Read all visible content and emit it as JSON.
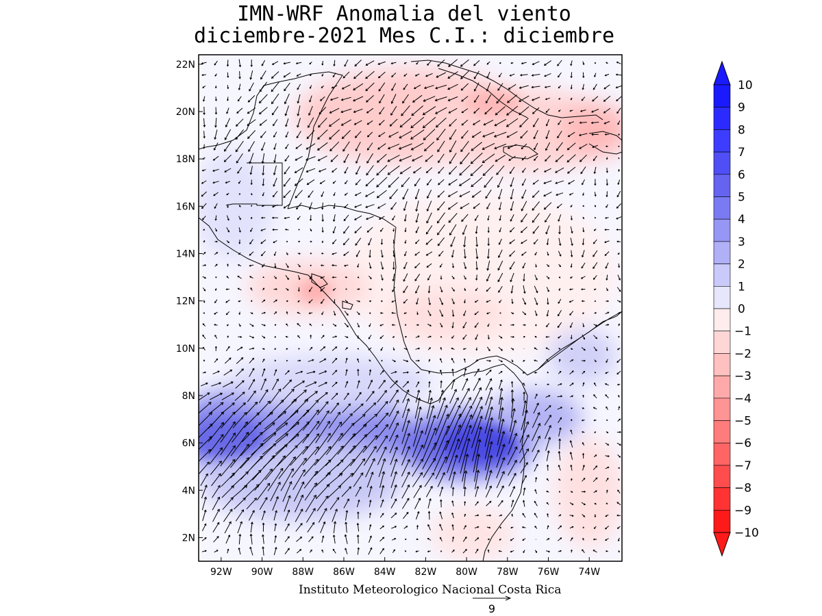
{
  "title": {
    "line1": "IMN-WRF Anomalia del viento",
    "line2": "diciembre-2021 Mes C.I.: diciembre"
  },
  "credit": "Instituto Meteorologico Nacional Costa Rica",
  "vector_reference": {
    "magnitude": "9"
  },
  "map": {
    "lon_range": [
      -93.1,
      -72.4
    ],
    "lat_range": [
      1.0,
      22.4
    ],
    "x_ticks": [
      "92W",
      "90W",
      "88W",
      "86W",
      "84W",
      "82W",
      "80W",
      "78W",
      "76W",
      "74W"
    ],
    "y_ticks": [
      "2N",
      "4N",
      "6N",
      "8N",
      "10N",
      "12N",
      "14N",
      "16N",
      "18N",
      "20N",
      "22N"
    ],
    "x_tick_lons": [
      -92,
      -90,
      -88,
      -86,
      -84,
      -82,
      -80,
      -78,
      -76,
      -74
    ],
    "y_tick_lats": [
      2,
      4,
      6,
      8,
      10,
      12,
      14,
      16,
      18,
      20,
      22
    ]
  },
  "colorbar": {
    "labels": [
      "10",
      "9",
      "8",
      "7",
      "6",
      "5",
      "4",
      "3",
      "2",
      "1",
      "0",
      "-1",
      "-2",
      "-3",
      "-4",
      "-5",
      "-6",
      "-7",
      "-8",
      "-9",
      "-10"
    ],
    "colors": [
      "#1a1aff",
      "#2b2bff",
      "#3d3dff",
      "#4f4ff5",
      "#6464f0",
      "#7a7af2",
      "#9696f5",
      "#b0b0f7",
      "#c9c9fa",
      "#e6e6fc",
      "#ffecec",
      "#ffd6d6",
      "#ffc0c0",
      "#ffaaaa",
      "#ff9494",
      "#ff7c7c",
      "#ff6565",
      "#ff4c4c",
      "#ff3333",
      "#ff1a1a"
    ],
    "top_arrow_color": "#1a1aff",
    "bottom_arrow_color": "#ff1a1a"
  }
}
